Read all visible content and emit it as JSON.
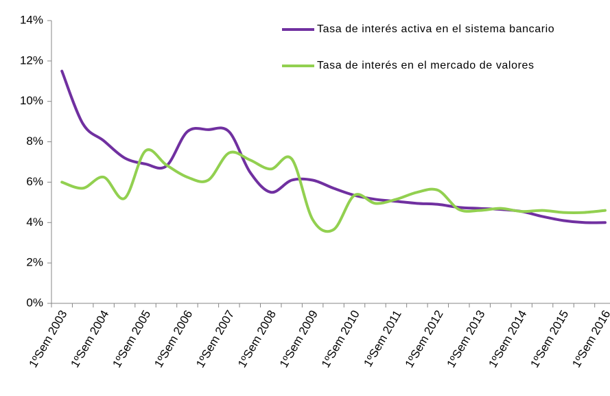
{
  "chart_data": {
    "type": "line",
    "categories": [
      "1ºSem 2003",
      null,
      "1ºSem 2004",
      null,
      "1ºSem 2005",
      null,
      "1ºSem 2006",
      null,
      "1ºSem 2007",
      null,
      "1ºSem 2008",
      null,
      "1ºSem 2009",
      null,
      "1ºSem 2010",
      null,
      "1ºSem 2011",
      null,
      "1ºSem 2012",
      null,
      "1ºSem 2013",
      null,
      "1ºSem 2014",
      null,
      "1ºSem 2015",
      null,
      "1ºSem 2016"
    ],
    "series": [
      {
        "name": "Tasa de interés activa en el sistema bancario",
        "color": "#7030a0",
        "values": [
          11.5,
          8.9,
          8.05,
          7.2,
          6.9,
          6.8,
          8.5,
          8.6,
          8.5,
          6.5,
          5.5,
          6.1,
          6.1,
          5.7,
          5.35,
          5.15,
          5.05,
          4.95,
          4.9,
          4.75,
          4.7,
          4.65,
          4.55,
          4.3,
          4.1,
          4.0,
          4.0
        ]
      },
      {
        "name": "Tasa de interés en el mercado de valores",
        "color": "#92d050",
        "values": [
          6.0,
          5.7,
          6.25,
          5.2,
          7.55,
          6.85,
          6.25,
          6.1,
          7.45,
          7.1,
          6.65,
          7.15,
          4.15,
          3.65,
          5.35,
          4.95,
          5.15,
          5.5,
          5.6,
          4.65,
          4.6,
          4.7,
          4.55,
          4.6,
          4.5,
          4.5,
          4.6
        ]
      }
    ],
    "ylim": [
      0,
      14
    ],
    "yticks": [
      {
        "value": 0,
        "label": "0%"
      },
      {
        "value": 2,
        "label": "2%"
      },
      {
        "value": 4,
        "label": "4%"
      },
      {
        "value": 6,
        "label": "6%"
      },
      {
        "value": 8,
        "label": "8%"
      },
      {
        "value": 10,
        "label": "10%"
      },
      {
        "value": 12,
        "label": "12%"
      },
      {
        "value": 14,
        "label": "14%"
      }
    ],
    "grid": false,
    "legend": "top-right"
  }
}
